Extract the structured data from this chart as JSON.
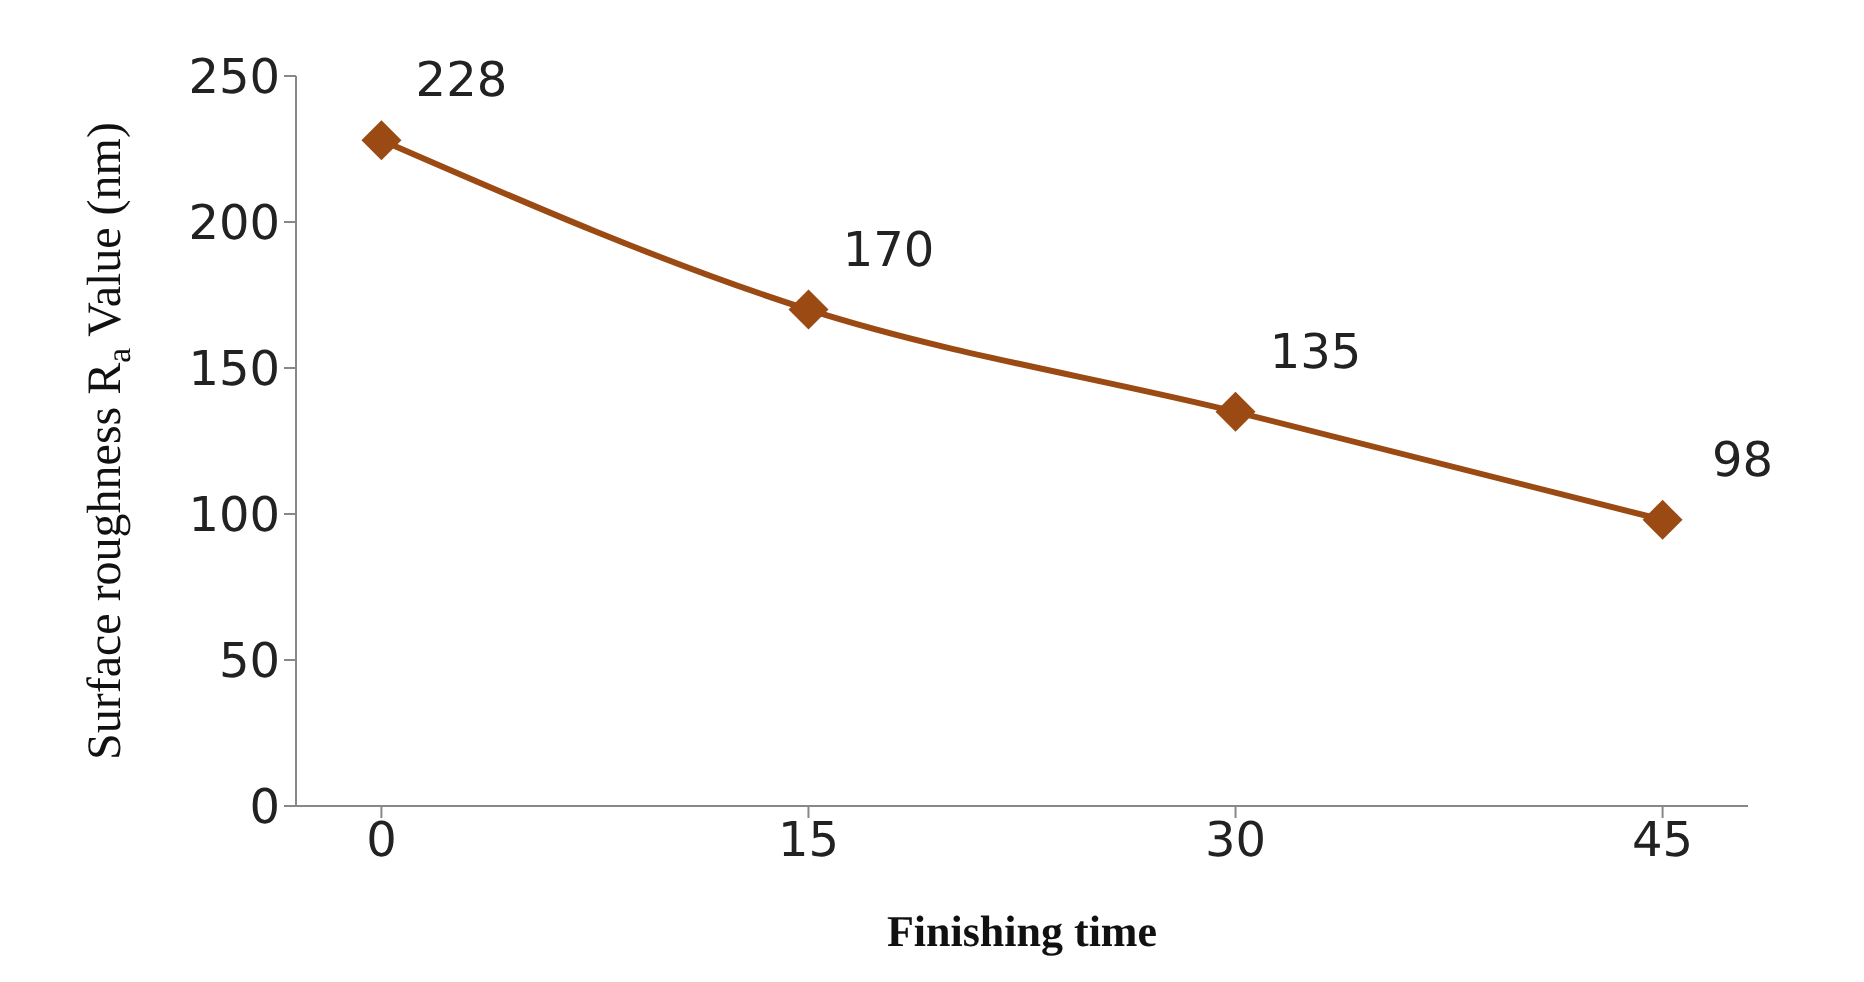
{
  "chart_data": {
    "type": "line",
    "xlabel": "Finishing time",
    "ylabel": "Surface roughness R$_{a}$ Value (nm)",
    "x": [
      0,
      15,
      30,
      45
    ],
    "series": [
      {
        "color": "#9a4a12",
        "values": [
          228,
          170,
          135,
          98
        ]
      }
    ],
    "xlim": [
      -3,
      48
    ],
    "xticks": [
      0,
      15,
      30,
      45
    ],
    "ylim": [
      0,
      250
    ],
    "yticks": [
      0,
      50,
      100,
      150,
      200,
      250
    ],
    "grid": false,
    "legend": false,
    "marker": "diamond",
    "line_style": "solid",
    "data_labels": true
  }
}
